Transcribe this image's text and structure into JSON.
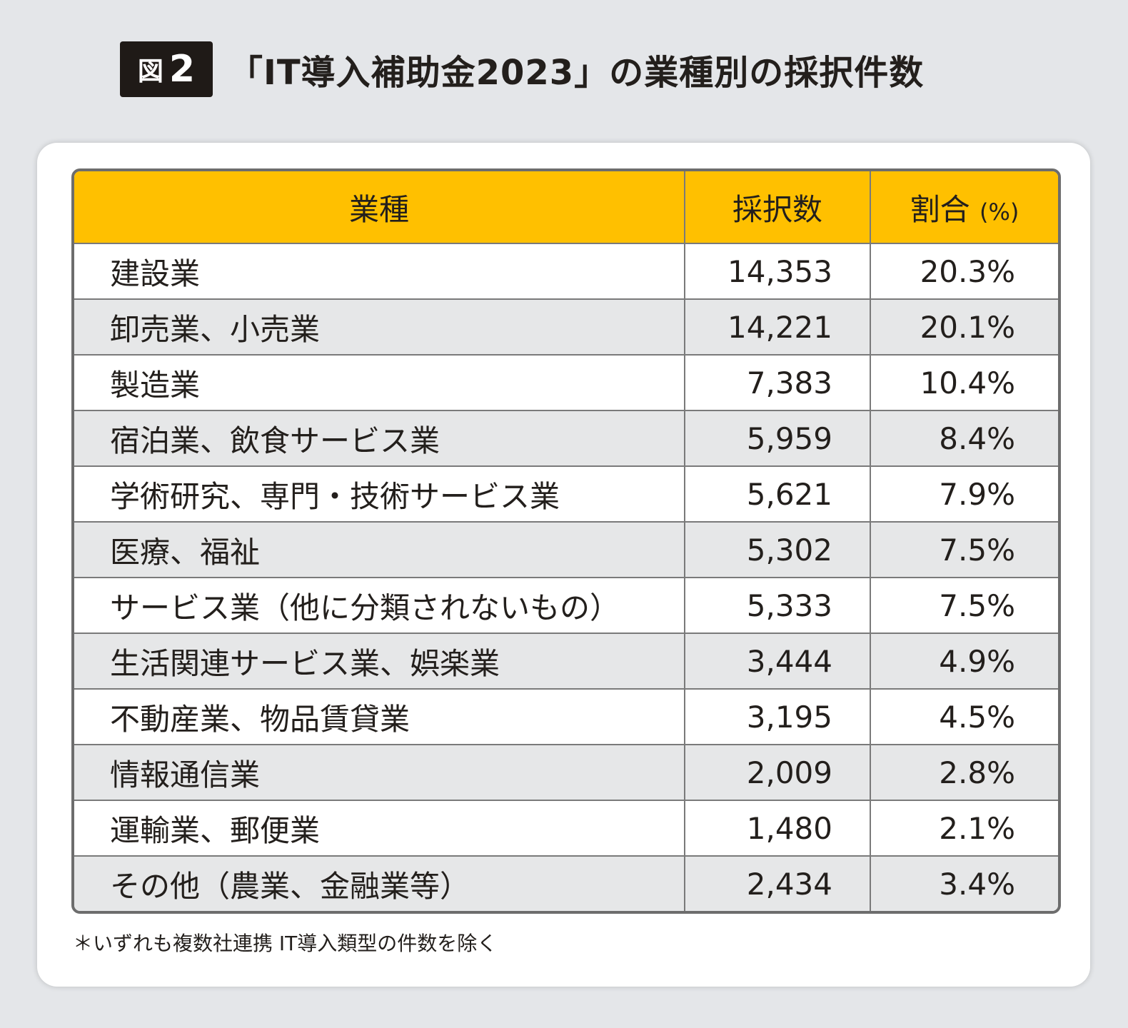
{
  "header": {
    "fig_label": "図",
    "fig_number": "2",
    "title": "「IT導入補助金2023」の業種別の採択件数"
  },
  "table": {
    "columns": {
      "industry": "業種",
      "count": "採択数",
      "ratio": "割合",
      "ratio_unit": "(%)"
    },
    "rows": [
      {
        "industry": "建設業",
        "count": "14,353",
        "ratio": "20.3%"
      },
      {
        "industry": "卸売業、小売業",
        "count": "14,221",
        "ratio": "20.1%"
      },
      {
        "industry": "製造業",
        "count": "7,383",
        "ratio": "10.4%"
      },
      {
        "industry": "宿泊業、飲食サービス業",
        "count": "5,959",
        "ratio": "8.4%"
      },
      {
        "industry": "学術研究、専門・技術サービス業",
        "count": "5,621",
        "ratio": "7.9%"
      },
      {
        "industry": "医療、福祉",
        "count": "5,302",
        "ratio": "7.5%"
      },
      {
        "industry": "サービス業（他に分類されないもの）",
        "count": "5,333",
        "ratio": "7.5%"
      },
      {
        "industry": "生活関連サービス業、娯楽業",
        "count": "3,444",
        "ratio": "4.9%"
      },
      {
        "industry": "不動産業、物品賃貸業",
        "count": "3,195",
        "ratio": "4.5%"
      },
      {
        "industry": "情報通信業",
        "count": "2,009",
        "ratio": "2.8%"
      },
      {
        "industry": "運輸業、郵便業",
        "count": "1,480",
        "ratio": "2.1%"
      },
      {
        "industry": "その他（農業、金融業等）",
        "count": "2,434",
        "ratio": "3.4%"
      }
    ]
  },
  "footnote": "＊いずれも複数社連携 IT導入類型の件数を除く",
  "colors": {
    "header_fill": "#ffc000",
    "badge_fill": "#1f1a17",
    "stripe_fill": "#e6e7e8",
    "page_bg": "#e4e6e9"
  }
}
